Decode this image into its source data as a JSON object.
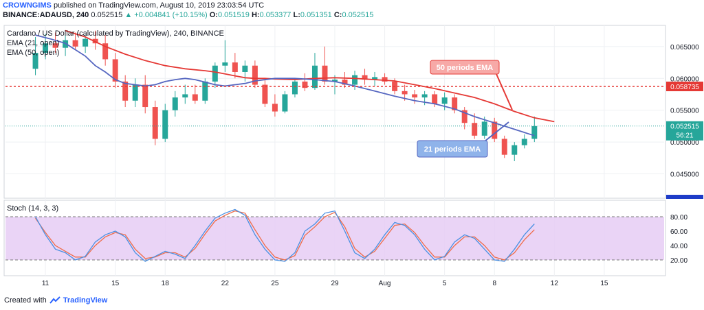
{
  "header": {
    "author": "CROWNGIMS",
    "published": "published on TradingView.com, August 10, 2019 23:03:54 UTC",
    "symbol": "BINANCE:ADAUSD, 240",
    "last": "0.052515",
    "change": "▲ +0.004841 (+10.15%)",
    "o_label": "O:",
    "o": "0.051519",
    "h_label": "H:",
    "h": "0.053377",
    "l_label": "L:",
    "l": "0.051351",
    "c_label": "C:",
    "c": "0.052515"
  },
  "legend": {
    "title": "Cardano / US Dollar (calculated by TradingView), 240, BINANCE",
    "ema21": "EMA (21, open)",
    "ema50": "EMA (50, open)"
  },
  "stoch_label": "Stoch (14, 3, 3)",
  "annotations": {
    "ema50_label": "50 periods EMA",
    "ema21_label": "21 periods EMA"
  },
  "price_tags": {
    "resistance": "0.058735",
    "current": "0.052515",
    "countdown": "56:21"
  },
  "footer": {
    "created_with": "Created with",
    "brand": "TradingView"
  },
  "colors": {
    "up": "#26a69a",
    "down": "#ef5350",
    "ema21": "#5566c0",
    "ema50": "#e53935",
    "stoch_k": "#4a90e2",
    "stoch_d": "#ef6c4a",
    "stoch_band": "#e6ccf5",
    "resistance": "#e53935"
  },
  "chart_data": [
    {
      "type": "candlestick",
      "title": "Cardano / US Dollar (calculated by TradingView), 240, BINANCE",
      "x_ticks": [
        "11",
        "15",
        "18",
        "22",
        "25",
        "29",
        "Aug",
        "5",
        "8",
        "12",
        "15"
      ],
      "x_tick_positions": [
        1,
        8,
        13,
        19,
        24,
        30,
        35,
        41,
        46,
        52,
        57
      ],
      "x_range": [
        -3,
        63
      ],
      "y_ticks": [
        "0.065000",
        "0.060000",
        "0.055000",
        "0.050000",
        "0.045000"
      ],
      "y_tick_values": [
        0.065,
        0.06,
        0.055,
        0.05,
        0.045
      ],
      "ylim": [
        0.0415,
        0.068
      ],
      "resistance_level": 0.058735,
      "current_price": 0.052515,
      "ohlc": [
        [
          0.0615,
          0.0665,
          0.0605,
          0.064
        ],
        [
          0.064,
          0.067,
          0.063,
          0.0655
        ],
        [
          0.0655,
          0.0672,
          0.064,
          0.0648
        ],
        [
          0.0648,
          0.0668,
          0.0635,
          0.066
        ],
        [
          0.066,
          0.0672,
          0.0645,
          0.065
        ],
        [
          0.065,
          0.0668,
          0.064,
          0.0662
        ],
        [
          0.0662,
          0.0675,
          0.0645,
          0.0655
        ],
        [
          0.0655,
          0.0668,
          0.062,
          0.063
        ],
        [
          0.063,
          0.064,
          0.0585,
          0.0595
        ],
        [
          0.0595,
          0.0605,
          0.0555,
          0.0565
        ],
        [
          0.0565,
          0.06,
          0.0555,
          0.059
        ],
        [
          0.059,
          0.0605,
          0.0545,
          0.0555
        ],
        [
          0.0555,
          0.0565,
          0.0495,
          0.0505
        ],
        [
          0.0505,
          0.056,
          0.05,
          0.055
        ],
        [
          0.055,
          0.058,
          0.054,
          0.057
        ],
        [
          0.057,
          0.059,
          0.056,
          0.0575
        ],
        [
          0.0575,
          0.059,
          0.056,
          0.0565
        ],
        [
          0.0565,
          0.06,
          0.056,
          0.0595
        ],
        [
          0.0595,
          0.0625,
          0.0585,
          0.062
        ],
        [
          0.062,
          0.066,
          0.061,
          0.0625
        ],
        [
          0.0625,
          0.064,
          0.06,
          0.061
        ],
        [
          0.061,
          0.0628,
          0.0595,
          0.062
        ],
        [
          0.062,
          0.0628,
          0.0585,
          0.059
        ],
        [
          0.059,
          0.06,
          0.0555,
          0.056
        ],
        [
          0.056,
          0.0575,
          0.054,
          0.0548
        ],
        [
          0.0548,
          0.058,
          0.0545,
          0.0575
        ],
        [
          0.0575,
          0.06,
          0.057,
          0.0595
        ],
        [
          0.0595,
          0.0608,
          0.058,
          0.0585
        ],
        [
          0.0585,
          0.064,
          0.0582,
          0.062
        ],
        [
          0.062,
          0.065,
          0.059,
          0.0595
        ],
        [
          0.0595,
          0.0605,
          0.0575,
          0.0598
        ],
        [
          0.0598,
          0.061,
          0.0585,
          0.059
        ],
        [
          0.059,
          0.0612,
          0.0582,
          0.0605
        ],
        [
          0.0605,
          0.0615,
          0.059,
          0.0598
        ],
        [
          0.0598,
          0.061,
          0.0588,
          0.0602
        ],
        [
          0.0602,
          0.0608,
          0.059,
          0.0595
        ],
        [
          0.0595,
          0.06,
          0.0575,
          0.058
        ],
        [
          0.058,
          0.059,
          0.0565,
          0.0575
        ],
        [
          0.0575,
          0.0582,
          0.056,
          0.057
        ],
        [
          0.057,
          0.058,
          0.0558,
          0.0575
        ],
        [
          0.0575,
          0.058,
          0.0555,
          0.056
        ],
        [
          0.056,
          0.0578,
          0.055,
          0.057
        ],
        [
          0.057,
          0.0575,
          0.0545,
          0.055
        ],
        [
          0.055,
          0.0555,
          0.052,
          0.053
        ],
        [
          0.053,
          0.0545,
          0.0505,
          0.051
        ],
        [
          0.051,
          0.054,
          0.0505,
          0.0532
        ],
        [
          0.0532,
          0.0538,
          0.05,
          0.0505
        ],
        [
          0.0505,
          0.051,
          0.0475,
          0.048
        ],
        [
          0.048,
          0.05,
          0.047,
          0.0495
        ],
        [
          0.0495,
          0.0512,
          0.049,
          0.0505
        ],
        [
          0.0505,
          0.054,
          0.05,
          0.0525
        ]
      ],
      "ema21": [
        0.0668,
        0.0662,
        0.0655,
        0.0645,
        0.0635,
        0.062,
        0.061,
        0.0598,
        0.0592,
        0.059,
        0.0588,
        0.059,
        0.0595,
        0.0598,
        0.06,
        0.0598,
        0.0594,
        0.059,
        0.0588,
        0.059,
        0.0592,
        0.0596,
        0.06,
        0.06,
        0.0598,
        0.0595,
        0.0588,
        0.058,
        0.0572,
        0.0565,
        0.056,
        0.0552,
        0.054,
        0.053,
        0.052,
        0.051
      ],
      "ema21_x": [
        0,
        1.5,
        3,
        4,
        5,
        6,
        7,
        8,
        9,
        10,
        11,
        12,
        13,
        14,
        15,
        16,
        17,
        18,
        19,
        20,
        21,
        22,
        24,
        26,
        28,
        30,
        32,
        34,
        36,
        38,
        40,
        42,
        44,
        46,
        48,
        50
      ],
      "ema50": [
        0.0675,
        0.0665,
        0.065,
        0.0638,
        0.0628,
        0.062,
        0.0615,
        0.0612,
        0.061,
        0.0607,
        0.0604,
        0.0601,
        0.06,
        0.06,
        0.0599,
        0.0598,
        0.06,
        0.0601,
        0.06,
        0.0598,
        0.0596,
        0.059,
        0.0584,
        0.0577,
        0.057,
        0.056,
        0.0548,
        0.0538,
        0.0532
      ],
      "ema50_x": [
        3,
        5,
        7,
        9,
        11,
        13,
        15,
        17,
        18,
        19,
        20,
        21,
        22,
        23,
        24,
        26,
        28,
        30,
        32,
        34,
        36,
        38,
        40,
        42,
        44,
        46,
        48,
        50,
        52
      ]
    },
    {
      "type": "line",
      "title": "Stoch (14, 3, 3)",
      "y_ticks": [
        "80.00",
        "60.00",
        "40.00",
        "20.00"
      ],
      "y_tick_values": [
        80,
        60,
        40,
        20
      ],
      "ylim": [
        0,
        100
      ],
      "bands": [
        20,
        80
      ],
      "x": [
        0,
        1,
        2,
        3,
        4,
        5,
        6,
        7,
        8,
        9,
        10,
        11,
        12,
        13,
        14,
        15,
        16,
        17,
        18,
        19,
        20,
        21,
        22,
        23,
        24,
        25,
        26,
        27,
        28,
        29,
        30,
        31,
        32,
        33,
        34,
        35,
        36,
        37,
        38,
        39,
        40,
        41,
        42,
        43,
        44,
        45,
        46,
        47,
        48,
        49,
        50
      ],
      "series": [
        {
          "values": [
            80,
            55,
            35,
            30,
            20,
            25,
            45,
            55,
            60,
            52,
            30,
            18,
            25,
            32,
            28,
            22,
            40,
            60,
            78,
            85,
            90,
            82,
            55,
            35,
            20,
            18,
            30,
            60,
            70,
            85,
            88,
            60,
            30,
            22,
            35,
            55,
            72,
            68,
            55,
            35,
            20,
            25,
            45,
            55,
            50,
            35,
            20,
            18,
            35,
            55,
            70
          ]
        },
        {
          "values": [
            78,
            58,
            40,
            32,
            24,
            24,
            40,
            52,
            58,
            55,
            35,
            22,
            24,
            30,
            30,
            24,
            36,
            56,
            74,
            82,
            88,
            85,
            62,
            40,
            24,
            20,
            26,
            54,
            66,
            80,
            86,
            66,
            36,
            24,
            32,
            50,
            68,
            70,
            58,
            40,
            24,
            24,
            40,
            52,
            52,
            40,
            24,
            20,
            30,
            48,
            62
          ]
        }
      ]
    }
  ]
}
